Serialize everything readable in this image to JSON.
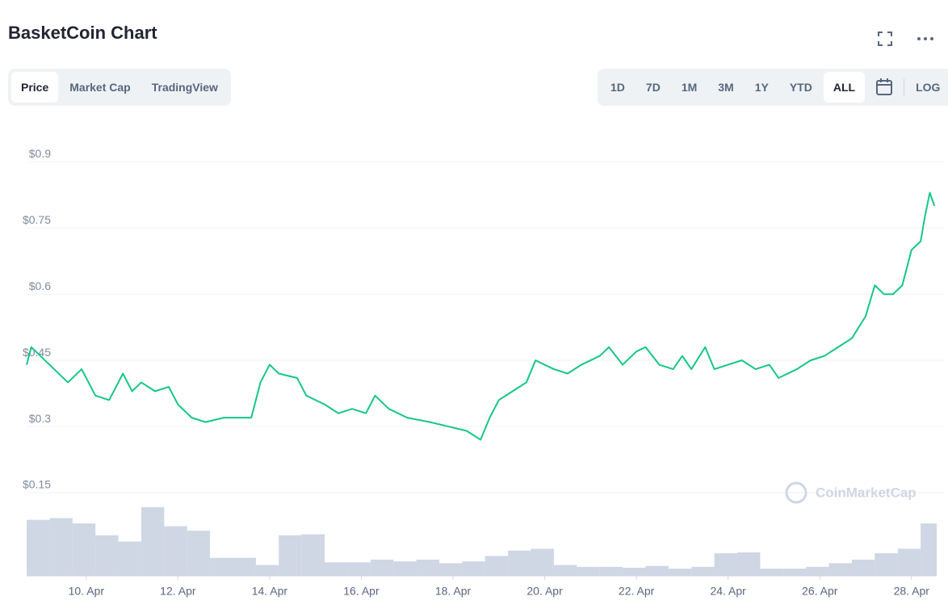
{
  "ui": {
    "tabs": [
      "Price",
      "Market Cap",
      "TradingView"
    ],
    "ranges": [
      "1D",
      "7D",
      "1M",
      "3M",
      "1Y",
      "YTD",
      "ALL"
    ],
    "log": "LOG",
    "watermark": "CoinMarketCap"
  },
  "chart_data": {
    "type": "line",
    "title": "BasketCoin Chart",
    "color": "#16c784",
    "x": [
      8.7,
      8.8,
      9.0,
      9.3,
      9.6,
      9.9,
      10.2,
      10.5,
      10.8,
      11.0,
      11.2,
      11.5,
      11.8,
      12.0,
      12.3,
      12.6,
      13.0,
      13.4,
      13.6,
      13.8,
      14.0,
      14.2,
      14.6,
      14.8,
      15.2,
      15.5,
      15.8,
      16.1,
      16.3,
      16.6,
      17.0,
      17.5,
      17.9,
      18.3,
      18.6,
      18.8,
      19.0,
      19.3,
      19.6,
      19.8,
      20.2,
      20.5,
      20.8,
      21.2,
      21.4,
      21.7,
      22.0,
      22.2,
      22.5,
      22.8,
      23.0,
      23.2,
      23.5,
      23.7,
      24.0,
      24.3,
      24.6,
      24.9,
      25.1,
      25.5,
      25.8,
      26.1,
      26.4,
      26.7,
      27.0,
      27.2,
      27.4,
      27.6,
      27.8,
      28.0,
      28.2,
      28.3,
      28.4,
      28.5
    ],
    "values": [
      0.44,
      0.48,
      0.46,
      0.43,
      0.4,
      0.43,
      0.37,
      0.36,
      0.42,
      0.38,
      0.4,
      0.38,
      0.39,
      0.35,
      0.32,
      0.31,
      0.32,
      0.32,
      0.32,
      0.4,
      0.44,
      0.42,
      0.41,
      0.37,
      0.35,
      0.33,
      0.34,
      0.33,
      0.37,
      0.34,
      0.32,
      0.31,
      0.3,
      0.29,
      0.27,
      0.32,
      0.36,
      0.38,
      0.4,
      0.45,
      0.43,
      0.42,
      0.44,
      0.46,
      0.48,
      0.44,
      0.47,
      0.48,
      0.44,
      0.43,
      0.46,
      0.43,
      0.48,
      0.43,
      0.44,
      0.45,
      0.43,
      0.44,
      0.41,
      0.43,
      0.45,
      0.46,
      0.48,
      0.5,
      0.55,
      0.62,
      0.6,
      0.6,
      0.62,
      0.7,
      0.72,
      0.78,
      0.83,
      0.8
    ],
    "ylim": [
      0.15,
      0.95
    ],
    "yticks": [
      {
        "value": 0.15,
        "label": "$0.15"
      },
      {
        "value": 0.3,
        "label": "$0.3"
      },
      {
        "value": 0.45,
        "label": "$0.45"
      },
      {
        "value": 0.6,
        "label": "$0.6"
      },
      {
        "value": 0.75,
        "label": "$0.75"
      },
      {
        "value": 0.9,
        "label": "$0.9"
      }
    ],
    "xlim": [
      8.7,
      28.55
    ],
    "xticks": [
      {
        "value": 10,
        "label": "10. Apr"
      },
      {
        "value": 12,
        "label": "12. Apr"
      },
      {
        "value": 14,
        "label": "14. Apr"
      },
      {
        "value": 16,
        "label": "16. Apr"
      },
      {
        "value": 18,
        "label": "18. Apr"
      },
      {
        "value": 20,
        "label": "20. Apr"
      },
      {
        "value": 22,
        "label": "22. Apr"
      },
      {
        "value": 24,
        "label": "24. Apr"
      },
      {
        "value": 26,
        "label": "26. Apr"
      },
      {
        "value": 28,
        "label": "28. Apr"
      }
    ],
    "grid": true,
    "volume": {
      "color": "#cfd6e4",
      "x": [
        8.7,
        9.2,
        9.7,
        10.2,
        10.7,
        11.2,
        11.7,
        12.2,
        12.7,
        13.2,
        13.7,
        14.2,
        14.7,
        15.2,
        15.7,
        16.2,
        16.7,
        17.2,
        17.7,
        18.2,
        18.7,
        19.2,
        19.7,
        20.2,
        20.7,
        21.2,
        21.7,
        22.2,
        22.7,
        23.2,
        23.7,
        24.2,
        24.7,
        25.2,
        25.7,
        26.2,
        26.7,
        27.2,
        27.7,
        28.2
      ],
      "values": [
        62,
        64,
        58,
        45,
        38,
        76,
        55,
        50,
        20,
        20,
        12,
        45,
        46,
        15,
        15,
        18,
        16,
        18,
        14,
        16,
        22,
        28,
        30,
        12,
        10,
        10,
        9,
        11,
        8,
        10,
        25,
        26,
        8,
        8,
        10,
        14,
        18,
        25,
        30,
        58
      ]
    }
  }
}
